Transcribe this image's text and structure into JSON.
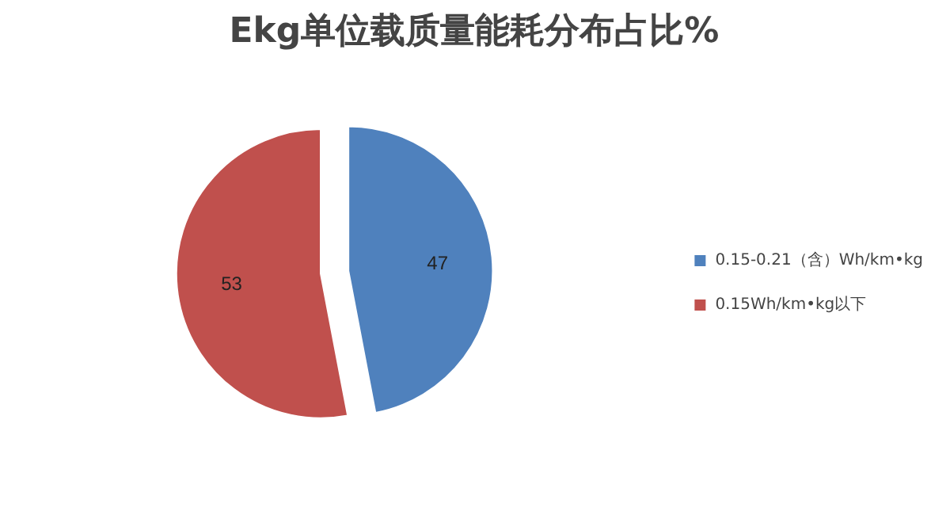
{
  "chart_data": {
    "type": "pie",
    "title": "Ekg单位载质量能耗分布占比%",
    "categories": [
      "0.15-0.21（含）Wh/km•kg",
      "0.15Wh/km•kg以下"
    ],
    "values": [
      47,
      53
    ],
    "colors": [
      "#4f81bd",
      "#c0504d"
    ],
    "data_labels": true,
    "legend": "right"
  }
}
